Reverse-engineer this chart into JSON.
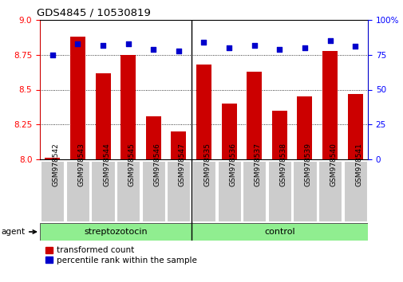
{
  "title": "GDS4845 / 10530819",
  "categories": [
    "GSM978542",
    "GSM978543",
    "GSM978544",
    "GSM978545",
    "GSM978546",
    "GSM978547",
    "GSM978535",
    "GSM978536",
    "GSM978537",
    "GSM978538",
    "GSM978539",
    "GSM978540",
    "GSM978541"
  ],
  "bar_values": [
    8.01,
    8.88,
    8.62,
    8.75,
    8.31,
    8.2,
    8.68,
    8.4,
    8.63,
    8.35,
    8.45,
    8.78,
    8.47
  ],
  "percentile_values": [
    75,
    83,
    82,
    83,
    79,
    78,
    84,
    80,
    82,
    79,
    80,
    85,
    81
  ],
  "bar_color": "#cc0000",
  "percentile_color": "#0000cc",
  "ylim_left": [
    8.0,
    9.0
  ],
  "ylim_right": [
    0,
    100
  ],
  "yticks_left": [
    8.0,
    8.25,
    8.5,
    8.75,
    9.0
  ],
  "yticks_right": [
    0,
    25,
    50,
    75,
    100
  ],
  "group1_label": "streptozotocin",
  "group2_label": "control",
  "group1_count": 6,
  "group2_count": 7,
  "group1_color": "#90ee90",
  "group2_color": "#90ee90",
  "agent_label": "agent",
  "legend_bar_label": "transformed count",
  "legend_perc_label": "percentile rank within the sample",
  "bar_color_legend": "#cc0000",
  "percentile_color_legend": "#0000cc",
  "bar_width": 0.6,
  "separator_index": 5.5,
  "tick_bg_color": "#cccccc",
  "spine_color_left": "#cc0000",
  "spine_color_right": "#0000cc"
}
